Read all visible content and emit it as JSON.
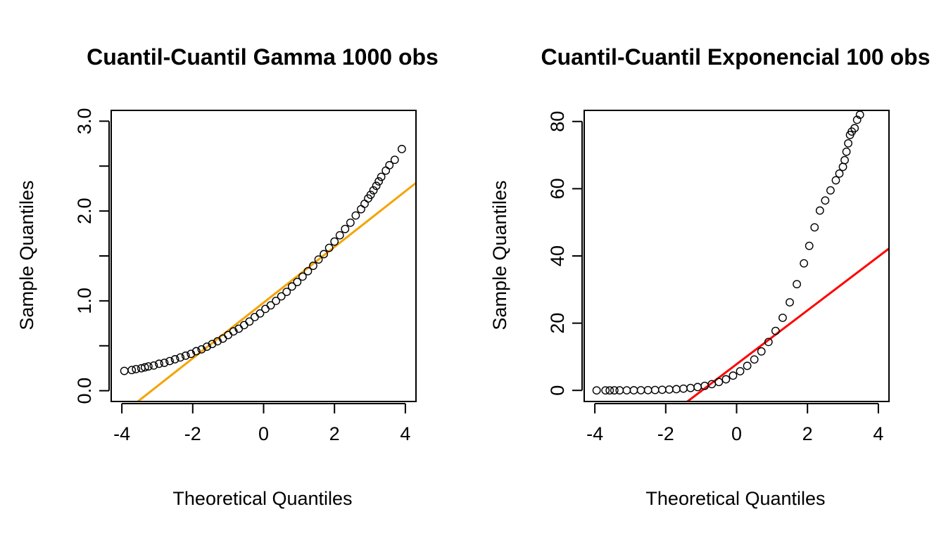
{
  "chart_data": [
    {
      "type": "scatter",
      "title": "Cuantil-Cuantil Gamma 1000 obs",
      "xlabel": "Theoretical Quantiles",
      "ylabel": "Sample Quantiles",
      "xlim": [
        -4.3,
        4.3
      ],
      "ylim": [
        -0.12,
        3.12
      ],
      "xticks": [
        -4,
        -2,
        0,
        2,
        4
      ],
      "xtick_labels": [
        "-4",
        "-2",
        "0",
        "2",
        "4"
      ],
      "yticks": [
        0.0,
        0.5,
        1.0,
        1.5,
        2.0,
        2.5,
        3.0
      ],
      "ytick_labels": [
        "0.0",
        "",
        "1.0",
        "",
        "2.0",
        "",
        "3.0"
      ],
      "grid": false,
      "legend": "none",
      "series": [
        {
          "points": [
            [
              -3.93,
              0.22
            ],
            [
              -3.72,
              0.23
            ],
            [
              -3.6,
              0.24
            ],
            [
              -3.45,
              0.25
            ],
            [
              -3.35,
              0.26
            ],
            [
              -3.25,
              0.27
            ],
            [
              -3.1,
              0.28
            ],
            [
              -2.95,
              0.3
            ],
            [
              -2.8,
              0.31
            ],
            [
              -2.65,
              0.33
            ],
            [
              -2.5,
              0.35
            ],
            [
              -2.35,
              0.37
            ],
            [
              -2.2,
              0.39
            ],
            [
              -2.05,
              0.41
            ],
            [
              -1.9,
              0.44
            ],
            [
              -1.75,
              0.46
            ],
            [
              -1.6,
              0.49
            ],
            [
              -1.45,
              0.52
            ],
            [
              -1.3,
              0.55
            ],
            [
              -1.15,
              0.58
            ],
            [
              -1.0,
              0.62
            ],
            [
              -0.85,
              0.66
            ],
            [
              -0.7,
              0.69
            ],
            [
              -0.55,
              0.73
            ],
            [
              -0.4,
              0.77
            ],
            [
              -0.25,
              0.82
            ],
            [
              -0.1,
              0.86
            ],
            [
              0.05,
              0.91
            ],
            [
              0.2,
              0.95
            ],
            [
              0.35,
              1.0
            ],
            [
              0.5,
              1.05
            ],
            [
              0.65,
              1.1
            ],
            [
              0.8,
              1.16
            ],
            [
              0.95,
              1.21
            ],
            [
              1.1,
              1.27
            ],
            [
              1.25,
              1.33
            ],
            [
              1.4,
              1.39
            ],
            [
              1.55,
              1.46
            ],
            [
              1.7,
              1.52
            ],
            [
              1.85,
              1.59
            ],
            [
              2.0,
              1.66
            ],
            [
              2.15,
              1.73
            ],
            [
              2.3,
              1.8
            ],
            [
              2.45,
              1.87
            ],
            [
              2.6,
              1.95
            ],
            [
              2.75,
              2.02
            ],
            [
              2.85,
              2.08
            ],
            [
              2.95,
              2.14
            ],
            [
              3.02,
              2.18
            ],
            [
              3.1,
              2.23
            ],
            [
              3.18,
              2.28
            ],
            [
              3.25,
              2.33
            ],
            [
              3.32,
              2.38
            ],
            [
              3.45,
              2.45
            ],
            [
              3.55,
              2.51
            ],
            [
              3.7,
              2.57
            ],
            [
              3.9,
              2.69
            ]
          ]
        }
      ],
      "reference_line": {
        "intercept": 0.98,
        "slope": 0.31,
        "color": "#f5a300"
      },
      "point_color": "#000000"
    },
    {
      "type": "scatter",
      "title": "Cuantil-Cuantil Exponencial 100 obs",
      "xlabel": "Theoretical Quantiles",
      "ylabel": "Sample Quantiles",
      "xlim": [
        -4.3,
        4.3
      ],
      "ylim": [
        -3.3,
        83.3
      ],
      "xticks": [
        -4,
        -2,
        0,
        2,
        4
      ],
      "xtick_labels": [
        "-4",
        "-2",
        "0",
        "2",
        "4"
      ],
      "yticks": [
        0,
        20,
        40,
        60,
        80
      ],
      "ytick_labels": [
        "0",
        "20",
        "40",
        "60",
        "80"
      ],
      "grid": false,
      "legend": "none",
      "series": [
        {
          "points": [
            [
              -3.95,
              0.0
            ],
            [
              -3.7,
              0.0
            ],
            [
              -3.58,
              0.0
            ],
            [
              -3.45,
              0.01
            ],
            [
              -3.3,
              0.01
            ],
            [
              -3.1,
              0.02
            ],
            [
              -2.9,
              0.03
            ],
            [
              -2.7,
              0.05
            ],
            [
              -2.5,
              0.08
            ],
            [
              -2.3,
              0.12
            ],
            [
              -2.1,
              0.18
            ],
            [
              -1.9,
              0.26
            ],
            [
              -1.7,
              0.37
            ],
            [
              -1.5,
              0.52
            ],
            [
              -1.3,
              0.72
            ],
            [
              -1.1,
              1.0
            ],
            [
              -0.9,
              1.35
            ],
            [
              -0.7,
              1.85
            ],
            [
              -0.5,
              2.5
            ],
            [
              -0.3,
              3.3
            ],
            [
              -0.1,
              4.4
            ],
            [
              0.1,
              5.7
            ],
            [
              0.3,
              7.3
            ],
            [
              0.5,
              9.2
            ],
            [
              0.7,
              11.6
            ],
            [
              0.9,
              14.4
            ],
            [
              1.1,
              17.7
            ],
            [
              1.3,
              21.6
            ],
            [
              1.5,
              26.2
            ],
            [
              1.7,
              31.6
            ],
            [
              1.9,
              37.8
            ],
            [
              2.05,
              43.0
            ],
            [
              2.2,
              48.5
            ],
            [
              2.35,
              53.5
            ],
            [
              2.5,
              56.5
            ],
            [
              2.65,
              59.5
            ],
            [
              2.8,
              62.5
            ],
            [
              2.9,
              64.5
            ],
            [
              3.0,
              66.5
            ],
            [
              3.05,
              68.5
            ],
            [
              3.1,
              71.0
            ],
            [
              3.15,
              73.5
            ],
            [
              3.2,
              76.0
            ],
            [
              3.25,
              77.0
            ],
            [
              3.33,
              78.0
            ],
            [
              3.4,
              80.5
            ],
            [
              3.48,
              82.0
            ]
          ]
        }
      ],
      "reference_line": {
        "intercept": 7.8,
        "slope": 8.0,
        "color": "#ff0000"
      },
      "point_color": "#000000"
    }
  ]
}
